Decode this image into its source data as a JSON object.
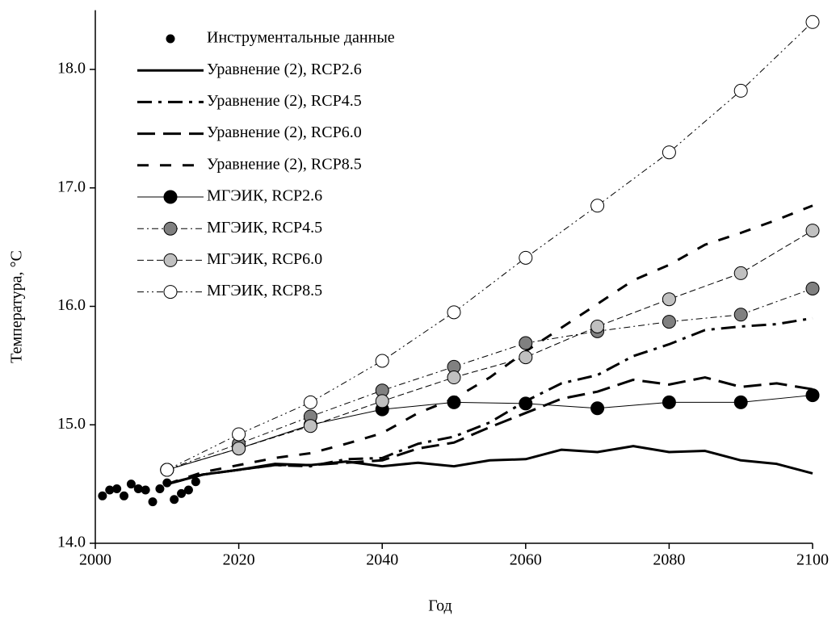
{
  "chart_data": {
    "type": "line",
    "x_label": "Год",
    "y_label": "Температура, °C",
    "xlim": [
      2000,
      2100
    ],
    "xticks": [
      2000,
      2020,
      2040,
      2060,
      2080,
      2100
    ],
    "ylim": [
      14,
      18.5
    ],
    "yticks": [
      {
        "value": 14,
        "label": "14.0"
      },
      {
        "value": 15,
        "label": "15.0"
      },
      {
        "value": 16,
        "label": "16.0"
      },
      {
        "value": 17,
        "label": "17.0"
      },
      {
        "value": 18,
        "label": "18.0"
      }
    ],
    "legend": "upper left",
    "series": [
      {
        "name": "Инструментальные данные",
        "mode": "markers",
        "color": "#000000",
        "fill": "#000000",
        "dash": "none",
        "width": 1,
        "marker_size": 5,
        "x": [
          2001,
          2002,
          2003,
          2004,
          2005,
          2006,
          2007,
          2008,
          2009,
          2010,
          2011,
          2012,
          2013,
          2014
        ],
        "values": [
          14.4,
          14.45,
          14.46,
          14.4,
          14.5,
          14.46,
          14.45,
          14.35,
          14.46,
          14.51,
          14.37,
          14.42,
          14.45,
          14.52
        ]
      },
      {
        "name": "Уравнение (2), RCP2.6",
        "mode": "lines",
        "color": "#000000",
        "dash": "none",
        "width": 3,
        "x": [
          2010,
          2015,
          2020,
          2025,
          2030,
          2035,
          2040,
          2045,
          2050,
          2055,
          2060,
          2065,
          2070,
          2075,
          2080,
          2085,
          2090,
          2095,
          2100
        ],
        "values": [
          14.5,
          14.58,
          14.62,
          14.67,
          14.66,
          14.69,
          14.65,
          14.68,
          14.65,
          14.7,
          14.71,
          14.79,
          14.77,
          14.82,
          14.77,
          14.78,
          14.7,
          14.67,
          14.59
        ]
      },
      {
        "name": "Уравнение (2), RCP4.5",
        "mode": "lines",
        "color": "#000000",
        "dash": "18 8 4 8",
        "width": 3,
        "x": [
          2010,
          2015,
          2020,
          2025,
          2030,
          2035,
          2040,
          2045,
          2050,
          2055,
          2060,
          2065,
          2070,
          2075,
          2080,
          2085,
          2090,
          2095,
          2100
        ],
        "values": [
          14.5,
          14.58,
          14.62,
          14.66,
          14.65,
          14.71,
          14.72,
          14.84,
          14.9,
          15.02,
          15.2,
          15.35,
          15.42,
          15.58,
          15.68,
          15.8,
          15.83,
          15.85,
          15.9
        ]
      },
      {
        "name": "Уравнение (2), RCP6.0",
        "mode": "lines",
        "color": "#000000",
        "dash": "22 10",
        "width": 3,
        "x": [
          2010,
          2015,
          2020,
          2025,
          2030,
          2035,
          2040,
          2045,
          2050,
          2055,
          2060,
          2065,
          2070,
          2075,
          2080,
          2085,
          2090,
          2095,
          2100
        ],
        "values": [
          14.5,
          14.58,
          14.62,
          14.66,
          14.66,
          14.68,
          14.7,
          14.8,
          14.85,
          14.98,
          15.1,
          15.22,
          15.28,
          15.38,
          15.34,
          15.4,
          15.32,
          15.35,
          15.3
        ]
      },
      {
        "name": "Уравнение (2), RCP8.5",
        "mode": "lines",
        "color": "#000000",
        "dash": "14 14",
        "width": 3,
        "x": [
          2010,
          2015,
          2020,
          2025,
          2030,
          2035,
          2040,
          2045,
          2050,
          2055,
          2060,
          2065,
          2070,
          2075,
          2080,
          2085,
          2090,
          2095,
          2100
        ],
        "values": [
          14.5,
          14.6,
          14.66,
          14.72,
          14.76,
          14.84,
          14.93,
          15.1,
          15.22,
          15.4,
          15.62,
          15.82,
          16.02,
          16.22,
          16.35,
          16.52,
          16.62,
          16.73,
          16.85
        ]
      },
      {
        "name": "МГЭИК, RCP2.6",
        "mode": "lines+markers",
        "color": "#000000",
        "fill": "#000000",
        "dash": "none",
        "width": 1,
        "marker_size": 8,
        "x": [
          2010,
          2020,
          2030,
          2040,
          2050,
          2060,
          2070,
          2080,
          2090,
          2100
        ],
        "values": [
          14.62,
          14.8,
          15.0,
          15.13,
          15.19,
          15.18,
          15.14,
          15.19,
          15.19,
          15.25
        ]
      },
      {
        "name": "МГЭИК, RCP4.5",
        "mode": "lines+markers",
        "color": "#000000",
        "fill": "#808080",
        "dash": "8 4 2 4",
        "width": 1,
        "marker_size": 8,
        "x": [
          2010,
          2020,
          2030,
          2040,
          2050,
          2060,
          2070,
          2080,
          2090,
          2100
        ],
        "values": [
          14.62,
          14.84,
          15.07,
          15.29,
          15.49,
          15.69,
          15.79,
          15.87,
          15.93,
          16.15
        ]
      },
      {
        "name": "МГЭИК, RCP6.0",
        "mode": "lines+markers",
        "color": "#000000",
        "fill": "#c0c0c0",
        "dash": "8 4",
        "width": 1,
        "marker_size": 8,
        "x": [
          2010,
          2020,
          2030,
          2040,
          2050,
          2060,
          2070,
          2080,
          2090,
          2100
        ],
        "values": [
          14.62,
          14.8,
          14.99,
          15.2,
          15.4,
          15.57,
          15.83,
          16.06,
          16.28,
          16.64
        ]
      },
      {
        "name": "МГЭИК, RCP8.5",
        "mode": "lines+markers",
        "color": "#000000",
        "fill": "#ffffff",
        "dash": "8 4 2 4 2 4",
        "width": 1,
        "marker_size": 8,
        "x": [
          2010,
          2020,
          2030,
          2040,
          2050,
          2060,
          2070,
          2080,
          2090,
          2100
        ],
        "values": [
          14.62,
          14.92,
          15.19,
          15.54,
          15.95,
          16.41,
          16.85,
          17.3,
          17.82,
          18.4
        ]
      }
    ]
  }
}
